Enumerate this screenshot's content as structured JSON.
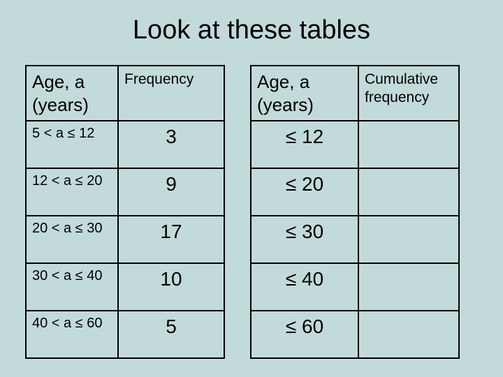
{
  "title": "Look at these tables",
  "table1": {
    "headers": {
      "age": "Age, a\n(years)",
      "freq": "Frequency"
    },
    "rows": [
      {
        "range": "5 < a ≤ 12",
        "freq": "3"
      },
      {
        "range": "12 < a ≤ 20",
        "freq": "9"
      },
      {
        "range": "20 < a ≤ 30",
        "freq": "17"
      },
      {
        "range": "30 < a ≤ 40",
        "freq": "10"
      },
      {
        "range": "40 < a ≤ 60",
        "freq": "5"
      }
    ]
  },
  "table2": {
    "headers": {
      "age": "Age, a\n(years)",
      "cum": "Cumulative\nfrequency"
    },
    "rows": [
      {
        "le": "≤ 12",
        "cum": ""
      },
      {
        "le": "≤ 20",
        "cum": ""
      },
      {
        "le": "≤ 30",
        "cum": ""
      },
      {
        "le": "≤ 40",
        "cum": ""
      },
      {
        "le": "≤ 60",
        "cum": ""
      }
    ]
  },
  "colors": {
    "background": "#c3dada",
    "border": "#000000",
    "text": "#000000"
  }
}
